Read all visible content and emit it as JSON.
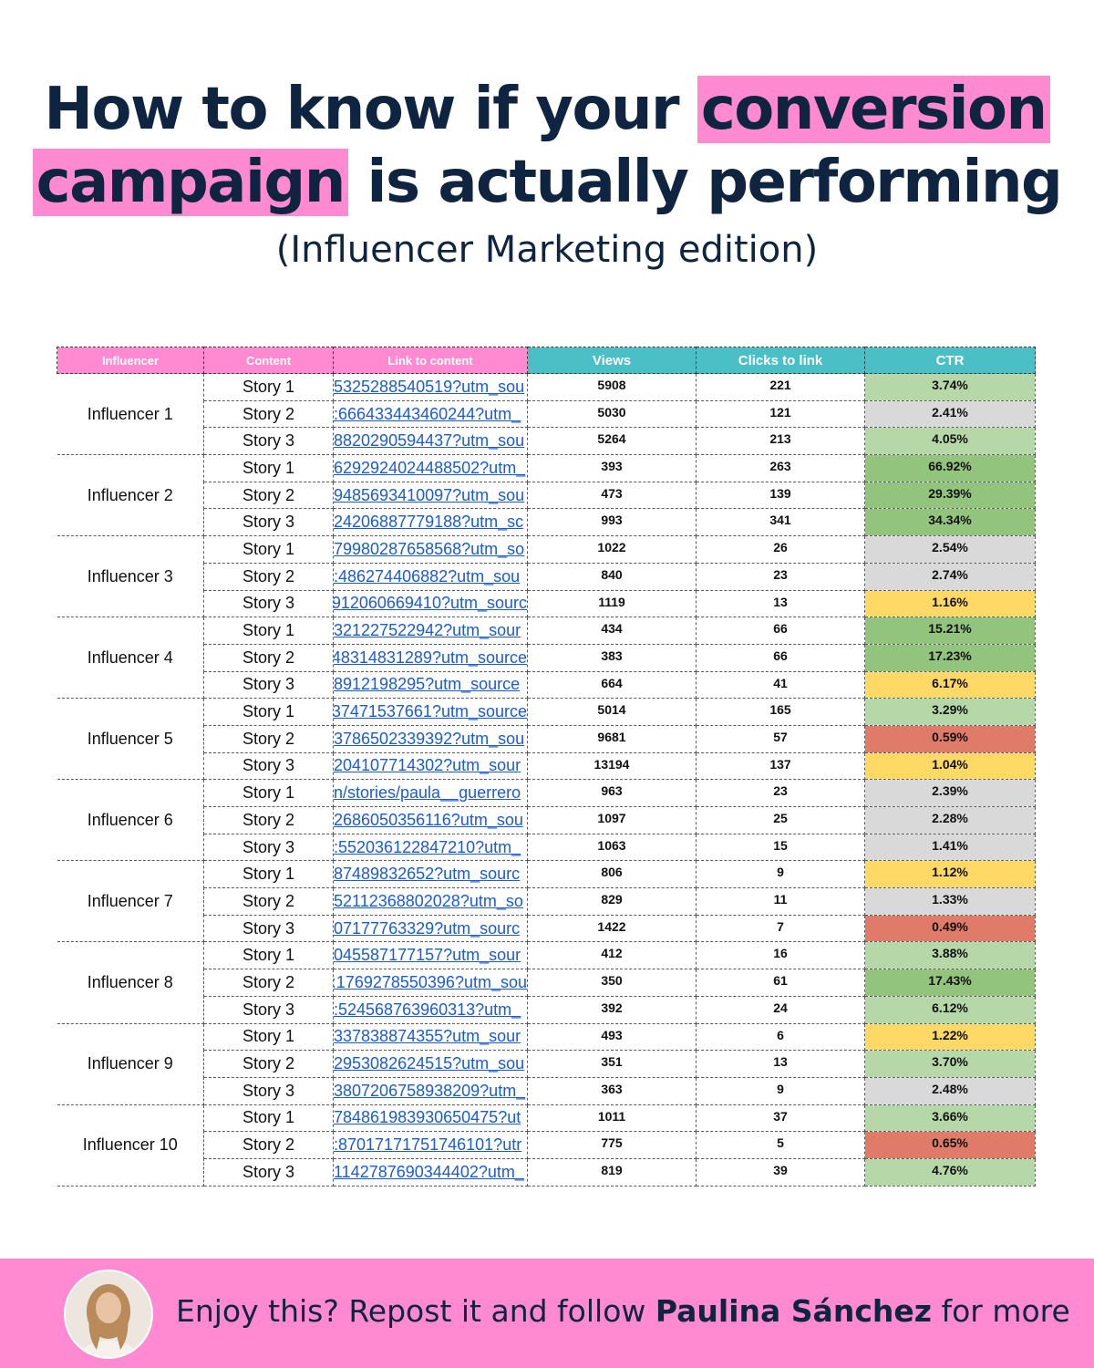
{
  "headline": {
    "line1_pre": "How to know if your ",
    "line1_highlight": "conversion",
    "line2_highlight": "campaign",
    "line2_post": " is actually performing"
  },
  "subtitle": "(Influencer Marketing edition)",
  "table": {
    "headers": {
      "influencer": "Influencer",
      "content": "Content",
      "link": "Link to content",
      "views": "Views",
      "clicks": "Clicks to link",
      "ctr": "CTR"
    },
    "header_colors": {
      "pink": "#ff8ad1",
      "teal": "#4bbfc6"
    },
    "ctr_colors": {
      "light_green": "#b6d7a8",
      "green": "#93c47d",
      "gray": "#d9d9d9",
      "yellow": "#ffd966",
      "red": "#e07b6a"
    },
    "groups": [
      {
        "influencer": "Influencer 1",
        "rows": [
          {
            "content": "Story 1",
            "link": "5325288540519?utm_sou",
            "views": "5908",
            "clicks": "221",
            "ctr": "3.74%",
            "ctr_color": "light_green"
          },
          {
            "content": "Story 2",
            "link": ":666433443460244?utm_",
            "views": "5030",
            "clicks": "121",
            "ctr": "2.41%",
            "ctr_color": "gray"
          },
          {
            "content": "Story 3",
            "link": "8820290594437?utm_sou",
            "views": "5264",
            "clicks": "213",
            "ctr": "4.05%",
            "ctr_color": "light_green"
          }
        ]
      },
      {
        "influencer": "Influencer 2",
        "rows": [
          {
            "content": "Story 1",
            "link": "6292924024488502?utm_",
            "views": "393",
            "clicks": "263",
            "ctr": "66.92%",
            "ctr_color": "green"
          },
          {
            "content": "Story 2",
            "link": "9485693410097?utm_sou",
            "views": "473",
            "clicks": "139",
            "ctr": "29.39%",
            "ctr_color": "green"
          },
          {
            "content": "Story 3",
            "link": "24206887779188?utm_sc",
            "views": "993",
            "clicks": "341",
            "ctr": "34.34%",
            "ctr_color": "green"
          }
        ]
      },
      {
        "influencer": "Influencer 3",
        "rows": [
          {
            "content": "Story 1",
            "link": "79980287658568?utm_so",
            "views": "1022",
            "clicks": "26",
            "ctr": "2.54%",
            "ctr_color": "gray"
          },
          {
            "content": "Story 2",
            "link": ":486274406882?utm_sou",
            "views": "840",
            "clicks": "23",
            "ctr": "2.74%",
            "ctr_color": "gray"
          },
          {
            "content": "Story 3",
            "link": "912060669410?utm_sourc",
            "views": "1119",
            "clicks": "13",
            "ctr": "1.16%",
            "ctr_color": "yellow"
          }
        ]
      },
      {
        "influencer": "Influencer 4",
        "rows": [
          {
            "content": "Story 1",
            "link": "321227522942?utm_sour",
            "views": "434",
            "clicks": "66",
            "ctr": "15.21%",
            "ctr_color": "green"
          },
          {
            "content": "Story 2",
            "link": "48314831289?utm_source",
            "views": "383",
            "clicks": "66",
            "ctr": "17.23%",
            "ctr_color": "green"
          },
          {
            "content": "Story 3",
            "link": "8912198295?utm_source",
            "views": "664",
            "clicks": "41",
            "ctr": "6.17%",
            "ctr_color": "yellow"
          }
        ]
      },
      {
        "influencer": "Influencer 5",
        "rows": [
          {
            "content": "Story 1",
            "link": "37471537661?utm_source",
            "views": "5014",
            "clicks": "165",
            "ctr": "3.29%",
            "ctr_color": "light_green"
          },
          {
            "content": "Story 2",
            "link": "3786502339392?utm_sou",
            "views": "9681",
            "clicks": "57",
            "ctr": "0.59%",
            "ctr_color": "red"
          },
          {
            "content": "Story 3",
            "link": "204107714302?utm_sour",
            "views": "13194",
            "clicks": "137",
            "ctr": "1.04%",
            "ctr_color": "yellow"
          }
        ]
      },
      {
        "influencer": "Influencer 6",
        "rows": [
          {
            "content": "Story 1",
            "link": "n/stories/paula__guerrero",
            "views": "963",
            "clicks": "23",
            "ctr": "2.39%",
            "ctr_color": "gray"
          },
          {
            "content": "Story 2",
            "link": "2686050356116?utm_sou",
            "views": "1097",
            "clicks": "25",
            "ctr": "2.28%",
            "ctr_color": "gray"
          },
          {
            "content": "Story 3",
            "link": ":552036122847210?utm_",
            "views": "1063",
            "clicks": "15",
            "ctr": "1.41%",
            "ctr_color": "gray"
          }
        ]
      },
      {
        "influencer": "Influencer 7",
        "rows": [
          {
            "content": "Story 1",
            "link": "87489832652?utm_sourc",
            "views": "806",
            "clicks": "9",
            "ctr": "1.12%",
            "ctr_color": "yellow"
          },
          {
            "content": "Story 2",
            "link": "52112368802028?utm_so",
            "views": "829",
            "clicks": "11",
            "ctr": "1.33%",
            "ctr_color": "gray"
          },
          {
            "content": "Story 3",
            "link": "07177763329?utm_sourc",
            "views": "1422",
            "clicks": "7",
            "ctr": "0.49%",
            "ctr_color": "red"
          }
        ]
      },
      {
        "influencer": "Influencer 8",
        "rows": [
          {
            "content": "Story 1",
            "link": "045587177157?utm_sour",
            "views": "412",
            "clicks": "16",
            "ctr": "3.88%",
            "ctr_color": "light_green"
          },
          {
            "content": "Story 2",
            "link": ":1769278550396?utm_sou",
            "views": "350",
            "clicks": "61",
            "ctr": "17.43%",
            "ctr_color": "green"
          },
          {
            "content": "Story 3",
            "link": ":524568763960313?utm_",
            "views": "392",
            "clicks": "24",
            "ctr": "6.12%",
            "ctr_color": "light_green"
          }
        ]
      },
      {
        "influencer": "Influencer 9",
        "rows": [
          {
            "content": "Story 1",
            "link": "337838874355?utm_sour",
            "views": "493",
            "clicks": "6",
            "ctr": "1.22%",
            "ctr_color": "yellow"
          },
          {
            "content": "Story 2",
            "link": "2953082624515?utm_sou",
            "views": "351",
            "clicks": "13",
            "ctr": "3.70%",
            "ctr_color": "light_green"
          },
          {
            "content": "Story 3",
            "link": "3807206758938209?utm_",
            "views": "363",
            "clicks": "9",
            "ctr": "2.48%",
            "ctr_color": "gray"
          }
        ]
      },
      {
        "influencer": "Influencer 10",
        "rows": [
          {
            "content": "Story 1",
            "link": "784861983930650475?ut",
            "views": "1011",
            "clicks": "37",
            "ctr": "3.66%",
            "ctr_color": "light_green"
          },
          {
            "content": "Story 2",
            "link": ":870171717517461​01?utr",
            "views": "775",
            "clicks": "5",
            "ctr": "0.65%",
            "ctr_color": "red"
          },
          {
            "content": "Story 3",
            "link": "1142787690344402?utm_",
            "views": "819",
            "clicks": "39",
            "ctr": "4.76%",
            "ctr_color": "light_green"
          }
        ]
      }
    ]
  },
  "footer": {
    "pre": "Enjoy this? Repost it and follow ",
    "name": "Paulina Sánchez",
    "post": " for more",
    "avatar_icon": "avatar-photo-icon",
    "background": "#ff8ad1"
  }
}
